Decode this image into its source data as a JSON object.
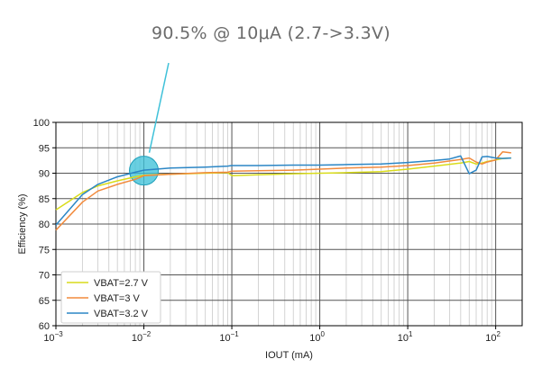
{
  "callout": {
    "text": "90.5% @ 10μA (2.7->3.3V)"
  },
  "colors": {
    "vbat_2_7": "#d9dc1a",
    "vbat_3": "#f28a3c",
    "vbat_3_2": "#2b86c5",
    "highlight": "#3fc1d9"
  },
  "chart_data": {
    "type": "line",
    "title": "",
    "xlabel": "IOUT (mA)",
    "ylabel": "Efficiency (%)",
    "xscale": "log",
    "xlim": [
      0.001,
      200
    ],
    "ylim": [
      60,
      100
    ],
    "grid": true,
    "legend_position": "bottom-left",
    "x_ticks": [
      {
        "value": 0.001,
        "base": "10",
        "exp": "−3"
      },
      {
        "value": 0.01,
        "base": "10",
        "exp": "−2"
      },
      {
        "value": 0.1,
        "base": "10",
        "exp": "−1"
      },
      {
        "value": 1,
        "base": "10",
        "exp": "0"
      },
      {
        "value": 10,
        "base": "10",
        "exp": "1"
      },
      {
        "value": 100,
        "base": "10",
        "exp": "2"
      }
    ],
    "y_ticks": [
      60,
      65,
      70,
      75,
      80,
      85,
      90,
      95,
      100
    ],
    "highlight_point": {
      "x": 0.01,
      "y": 90.5
    },
    "series": [
      {
        "name": "VBAT=2.7 V",
        "color_key": "vbat_2_7",
        "x": [
          0.001,
          0.002,
          0.003,
          0.005,
          0.008,
          0.01,
          0.02,
          0.05,
          0.09,
          0.1,
          0.2,
          0.5,
          1,
          2,
          5,
          10,
          20,
          40,
          50,
          60,
          70,
          80,
          100,
          120,
          150
        ],
        "y": [
          82.8,
          86.2,
          87.5,
          88.5,
          89.3,
          89.6,
          89.8,
          90.0,
          90.1,
          89.5,
          89.7,
          89.9,
          90.0,
          90.1,
          90.3,
          90.8,
          91.4,
          92.0,
          92.3,
          91.8,
          92.0,
          92.3,
          92.6,
          92.9,
          93.0
        ]
      },
      {
        "name": "VBAT=3 V",
        "color_key": "vbat_3",
        "x": [
          0.001,
          0.002,
          0.003,
          0.005,
          0.008,
          0.01,
          0.02,
          0.05,
          0.09,
          0.1,
          0.2,
          0.5,
          1,
          2,
          5,
          10,
          20,
          40,
          50,
          60,
          70,
          80,
          100,
          120,
          150
        ],
        "y": [
          78.8,
          84.3,
          86.5,
          87.8,
          88.8,
          89.5,
          89.8,
          90.1,
          90.2,
          90.4,
          90.5,
          90.6,
          90.8,
          91.0,
          91.2,
          91.5,
          92.0,
          92.7,
          93.0,
          92.2,
          91.8,
          92.2,
          92.6,
          94.2,
          94.0
        ]
      },
      {
        "name": "VBAT=3.2 V",
        "color_key": "vbat_3_2",
        "x": [
          0.001,
          0.002,
          0.003,
          0.005,
          0.008,
          0.01,
          0.02,
          0.05,
          0.09,
          0.1,
          0.2,
          0.5,
          1,
          2,
          5,
          10,
          20,
          30,
          40,
          50,
          60,
          70,
          80,
          100,
          120,
          150
        ],
        "y": [
          79.8,
          85.8,
          87.8,
          89.3,
          90.2,
          90.6,
          91.0,
          91.2,
          91.4,
          91.5,
          91.5,
          91.6,
          91.6,
          91.7,
          91.8,
          92.1,
          92.5,
          92.8,
          93.4,
          89.9,
          90.6,
          93.2,
          93.3,
          93.0,
          92.9,
          93.0
        ]
      }
    ]
  }
}
